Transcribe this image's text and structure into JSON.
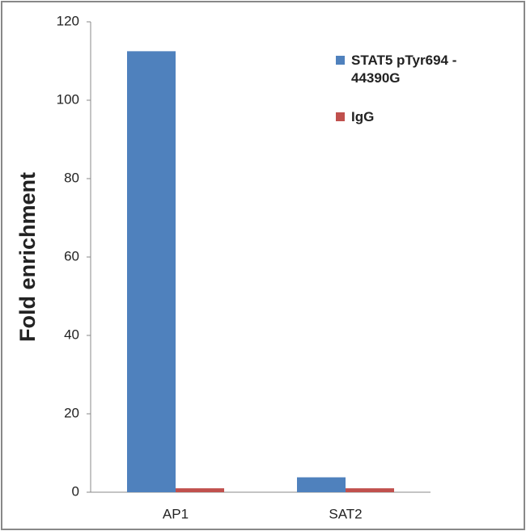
{
  "chart_data": {
    "type": "bar",
    "y_label": "Fold enrichment",
    "categories": [
      "AP1",
      "SAT2"
    ],
    "series": [
      {
        "name": "STAT5 pTyr694 - 44390G",
        "color": "#4f81bd",
        "values": [
          112.5,
          3.8
        ]
      },
      {
        "name": "IgG",
        "color": "#c0504d",
        "values": [
          1,
          1
        ]
      }
    ],
    "ylim": [
      0,
      120
    ],
    "yticks": [
      0,
      20,
      40,
      60,
      80,
      100,
      120
    ],
    "grid": false
  }
}
